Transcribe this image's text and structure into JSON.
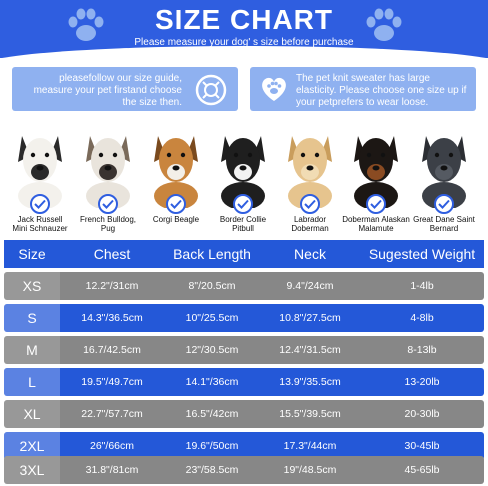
{
  "header": {
    "title": "SIZE CHART",
    "subtitle": "Please measure your dog' s size before purchase",
    "paw_color": "#8fb1f0",
    "bg_color": "#2f5ee0"
  },
  "tips": [
    {
      "text": "pleasefollow our size guide, measure your pet firstand choose the size then.",
      "icon": "measuring-tape-icon"
    },
    {
      "text": "The pet knit sweater has large elasticity. Please choose one size up if your petprefers to wear loose.",
      "icon": "heart-paw-icon"
    }
  ],
  "breeds": [
    {
      "label": "Jack Russell Mini Schnauzer",
      "line1": "Jack Russell",
      "line2": "Mini Schnauzer"
    },
    {
      "label": "French Bulldog, Pug",
      "line1": "French Bulldog,",
      "line2": "Pug"
    },
    {
      "label": "Corgi Beagle",
      "line1": "Corgi Beagle",
      "line2": ""
    },
    {
      "label": "Border Collie Pitbull",
      "line1": "Border Collie",
      "line2": "Pitbull"
    },
    {
      "label": "Labrador Doberman",
      "line1": "Labrador",
      "line2": "Doberman"
    },
    {
      "label": "Doberman Alaskan Malamute",
      "line1": "Doberman Alaskan",
      "line2": "Malamute"
    },
    {
      "label": "Great Dane Saint Bernard",
      "line1": "Great Dane Saint",
      "line2": "Bernard"
    }
  ],
  "table": {
    "columns": [
      "Size",
      "Chest",
      "Back Length",
      "Neck",
      "Sugested Weight"
    ],
    "rows": [
      [
        "XS",
        "12.2\"/31cm",
        "8\"/20.5cm",
        "9.4\"/24cm",
        "1-4lb"
      ],
      [
        "S",
        "14.3\"/36.5cm",
        "10\"/25.5cm",
        "10.8\"/27.5cm",
        "4-8lb"
      ],
      [
        "M",
        "16.7/42.5cm",
        "12\"/30.5cm",
        "12.4\"/31.5cm",
        "8-13lb"
      ],
      [
        "L",
        "19.5\"/49.7cm",
        "14.1\"/36cm",
        "13.9\"/35.5cm",
        "13-20lb"
      ],
      [
        "XL",
        "22.7\"/57.7cm",
        "16.5\"/42cm",
        "15.5\"/39.5cm",
        "20-30lb"
      ],
      [
        "2XL",
        "26\"/66cm",
        "19.6\"/50cm",
        "17.3\"/44cm",
        "30-45lb"
      ],
      [
        "3XL",
        "31.8\"/81cm",
        "23\"/58.5cm",
        "19\"/48.5cm",
        "45-65lb"
      ]
    ],
    "row_colors": [
      "#878787",
      "#2458d8"
    ]
  }
}
